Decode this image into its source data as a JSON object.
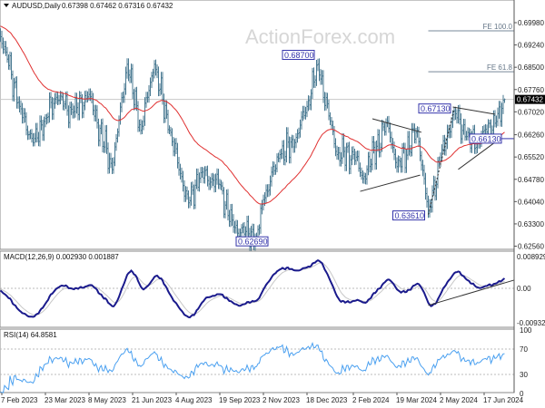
{
  "header": {
    "symbol": "AUDUSD,Daily",
    "ohlc": "0.67398 0.67462 0.67316 0.67432"
  },
  "watermark": "ActionForex.com",
  "colors": {
    "bars": "#4a7a92",
    "ma": "#e03030",
    "macd": "#1a1a8c",
    "signal": "#c8c8c8",
    "rsi": "#4aa0f0",
    "label_border": "#3333aa",
    "fe_line": "#778899",
    "price_tag_bg": "#000000"
  },
  "chart_data": [
    {
      "type": "ohlc",
      "title": "AUDUSD,Daily",
      "last": {
        "open": 0.67398,
        "high": 0.67462,
        "low": 0.67316,
        "close": 0.67432
      },
      "current_price_label": "0.67432",
      "ylim": [
        0.625,
        0.7036
      ],
      "y_ticks": [
        "0.69980",
        "0.69240",
        "0.68500",
        "0.67760",
        "0.67020",
        "0.66260",
        "0.65520",
        "0.64780",
        "0.64040",
        "0.63300",
        "0.62560"
      ],
      "x_ticks": [
        "7 Feb 2023",
        "23 Mar 2023",
        "8 May 2023",
        "21 Jun 2023",
        "4 Aug 2023",
        "19 Sep 2023",
        "2 Nov 2023",
        "18 Dec 2023",
        "2 Feb 2024",
        "19 Mar 2024",
        "2 May 2024",
        "17 Jun 2024"
      ],
      "x_tick_dates": [
        "2023-02-07",
        "2023-03-23",
        "2023-05-08",
        "2023-06-21",
        "2023-08-04",
        "2023-09-19",
        "2023-11-02",
        "2023-12-18",
        "2024-02-02",
        "2024-03-19",
        "2024-05-02",
        "2024-06-17"
      ],
      "close_path": [
        [
          "2023-01-30",
          0.699
        ],
        [
          "2023-02-02",
          0.6975
        ],
        [
          "2023-02-10",
          0.69
        ],
        [
          "2023-02-24",
          0.672
        ],
        [
          "2023-03-10",
          0.66
        ],
        [
          "2023-03-23",
          0.668
        ],
        [
          "2023-04-04",
          0.675
        ],
        [
          "2023-04-20",
          0.67
        ],
        [
          "2023-05-08",
          0.676
        ],
        [
          "2023-05-31",
          0.651
        ],
        [
          "2023-06-15",
          0.686
        ],
        [
          "2023-06-29",
          0.664
        ],
        [
          "2023-07-13",
          0.686
        ],
        [
          "2023-07-28",
          0.664
        ],
        [
          "2023-08-17",
          0.64
        ],
        [
          "2023-08-30",
          0.65
        ],
        [
          "2023-09-19",
          0.646
        ],
        [
          "2023-10-03",
          0.632
        ],
        [
          "2023-10-26",
          0.6285
        ],
        [
          "2023-11-02",
          0.641
        ],
        [
          "2023-11-20",
          0.656
        ],
        [
          "2023-12-05",
          0.66
        ],
        [
          "2023-12-18",
          0.672
        ],
        [
          "2023-12-28",
          0.686
        ],
        [
          "2024-01-17",
          0.656
        ],
        [
          "2024-02-02",
          0.656
        ],
        [
          "2024-02-13",
          0.648
        ],
        [
          "2024-03-08",
          0.667
        ],
        [
          "2024-03-19",
          0.652
        ],
        [
          "2024-04-09",
          0.664
        ],
        [
          "2024-04-19",
          0.637
        ],
        [
          "2024-05-02",
          0.655
        ],
        [
          "2024-05-16",
          0.6705
        ],
        [
          "2024-05-29",
          0.662
        ],
        [
          "2024-06-11",
          0.66
        ],
        [
          "2024-06-17",
          0.664
        ],
        [
          "2024-06-28",
          0.667
        ],
        [
          "2024-07-08",
          0.6743
        ]
      ],
      "moving_average": "red line",
      "annotations": {
        "price_labels": [
          {
            "text": "0.68700",
            "date": "2023-12-28",
            "price": 0.687
          },
          {
            "text": "0.67130",
            "date": "2024-05-16",
            "price": 0.6713
          },
          {
            "text": "0.66130",
            "date": "2024-06-11",
            "price": 0.6613
          },
          {
            "text": "0.63610",
            "date": "2024-04-19",
            "price": 0.6361
          },
          {
            "text": "0.62690",
            "date": "2023-10-26",
            "price": 0.6269
          }
        ],
        "fe_levels": [
          {
            "text": "FE 100.0",
            "price": 0.6971,
            "from": "2024-04-19"
          },
          {
            "text": "FE 61.8",
            "price": 0.6835,
            "from": "2024-04-19"
          }
        ],
        "trendlines": [
          {
            "from": [
              "2024-02-22",
              0.6679
            ],
            "to": [
              "2024-04-12",
              0.6634
            ],
            "style": "solid"
          },
          {
            "from": [
              "2024-02-09",
              0.6438
            ],
            "to": [
              "2024-04-11",
              0.6492
            ],
            "style": "solid"
          },
          {
            "from": [
              "2024-05-15",
              0.6718
            ],
            "to": [
              "2024-06-27",
              0.6694
            ],
            "style": "solid"
          },
          {
            "from": [
              "2024-05-21",
              0.6511
            ],
            "to": [
              "2024-07-02",
              0.6611
            ],
            "style": "solid"
          },
          {
            "from": [
              "2024-04-19",
              0.6361
            ],
            "to": [
              "2024-05-16",
              0.6713
            ],
            "style": "dotted"
          }
        ]
      }
    },
    {
      "type": "line",
      "title": "MACD(12,26,9) 0.002930 0.001887",
      "y_ticks": [
        "0.008929",
        "0.00",
        "-0.009321"
      ],
      "ylim": [
        -0.009321,
        0.008929
      ],
      "series": [
        {
          "name": "MACD",
          "values": "computed 12,26,9 from closes"
        },
        {
          "name": "Signal"
        }
      ],
      "last": {
        "macd": 0.00293,
        "signal": 0.001887
      },
      "trendline": {
        "from": [
          "2024-04-19",
          -0.0048
        ],
        "to": [
          "2024-07-08",
          0.0018
        ]
      }
    },
    {
      "type": "line",
      "title": "RSI(14) 64.8581",
      "y_ticks": [
        "100",
        "70",
        "30",
        "0"
      ],
      "ylim": [
        0,
        100
      ],
      "levels": [
        70,
        30
      ],
      "last": 64.8581
    }
  ]
}
